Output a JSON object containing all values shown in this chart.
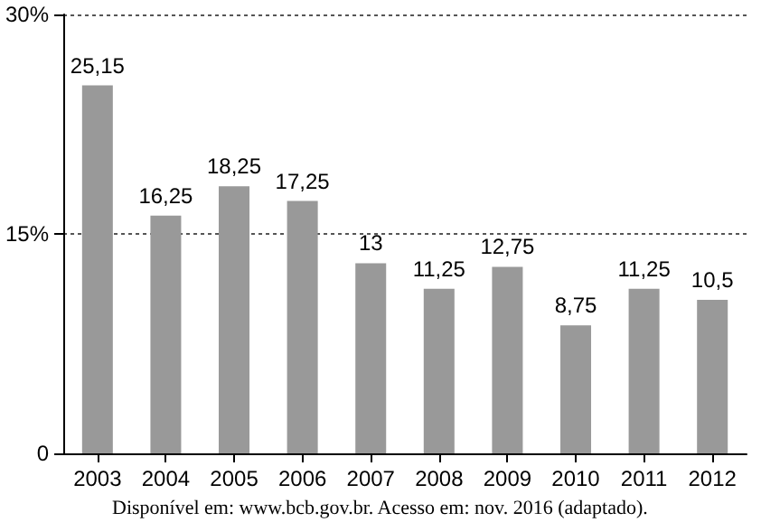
{
  "chart_data": {
    "type": "bar",
    "categories": [
      "2003",
      "2004",
      "2005",
      "2006",
      "2007",
      "2008",
      "2009",
      "2010",
      "2011",
      "2012"
    ],
    "values": [
      25.15,
      16.25,
      18.25,
      17.25,
      13,
      11.25,
      12.75,
      8.75,
      11.25,
      10.5
    ],
    "value_labels": [
      "25,15",
      "16,25",
      "18,25",
      "17,25",
      "13",
      "11,25",
      "12,75",
      "8,75",
      "11,25",
      "10,5"
    ],
    "color": "#999999",
    "ylim": [
      0,
      30
    ],
    "yticks": [
      {
        "value": 0,
        "label": "0"
      },
      {
        "value": 15,
        "label": "15%"
      },
      {
        "value": 30,
        "label": "30%"
      }
    ],
    "grid": "y",
    "annotations": [
      "Disponível em: www.bcb.gov.br. Acesso em: nov. 2016 (adaptado)."
    ]
  }
}
